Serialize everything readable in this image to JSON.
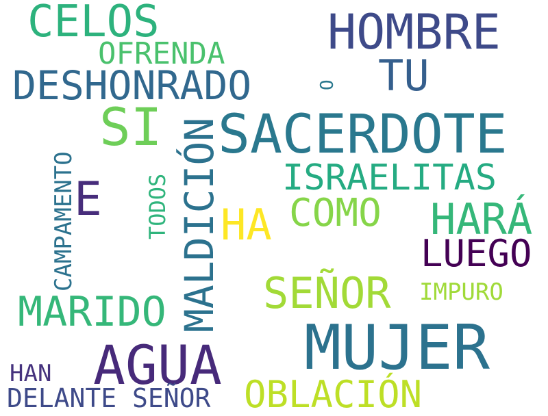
{
  "words": {
    "celos": {
      "text": "CELOS",
      "color": "#2db27d"
    },
    "hombre": {
      "text": "HOMBRE",
      "color": "#3e4a89"
    },
    "ofrenda": {
      "text": "OFRENDA",
      "color": "#4ac16d"
    },
    "o": {
      "text": "O",
      "color": "#2a788e"
    },
    "tu": {
      "text": "TU",
      "color": "#355f8d"
    },
    "deshonrado": {
      "text": "DESHONRADO",
      "color": "#31688e"
    },
    "si": {
      "text": "SI",
      "color": "#6ece58"
    },
    "maldicion": {
      "text": "MALDICIÓN",
      "color": "#2c728e"
    },
    "sacerdote": {
      "text": "SACERDOTE",
      "color": "#2a788e"
    },
    "campamento": {
      "text": "CAMPAMENTO",
      "color": "#2c728e"
    },
    "todos": {
      "text": "TODOS",
      "color": "#2fb47c"
    },
    "israelitas": {
      "text": "ISRAELITAS",
      "color": "#25ab82"
    },
    "e": {
      "text": "E",
      "color": "#472d7b"
    },
    "ha": {
      "text": "HA",
      "color": "#fde725"
    },
    "como": {
      "text": "COMO",
      "color": "#86d549"
    },
    "hara": {
      "text": "HARÁ",
      "color": "#35b779"
    },
    "luego": {
      "text": "LUEGO",
      "color": "#440154"
    },
    "senor": {
      "text": "SEÑOR",
      "color": "#a2da37"
    },
    "impuro": {
      "text": "IMPURO",
      "color": "#a0da39"
    },
    "marido": {
      "text": "MARIDO",
      "color": "#35b779"
    },
    "mujer": {
      "text": "MUJER",
      "color": "#2c728e"
    },
    "agua": {
      "text": "AGUA",
      "color": "#472a7a"
    },
    "han": {
      "text": "HAN",
      "color": "#46337e"
    },
    "delante_senor": {
      "text": "DELANTE SEÑOR",
      "color": "#3e4a89"
    },
    "oblacion": {
      "text": "OBLACIÓN",
      "color": "#bddf26"
    }
  }
}
